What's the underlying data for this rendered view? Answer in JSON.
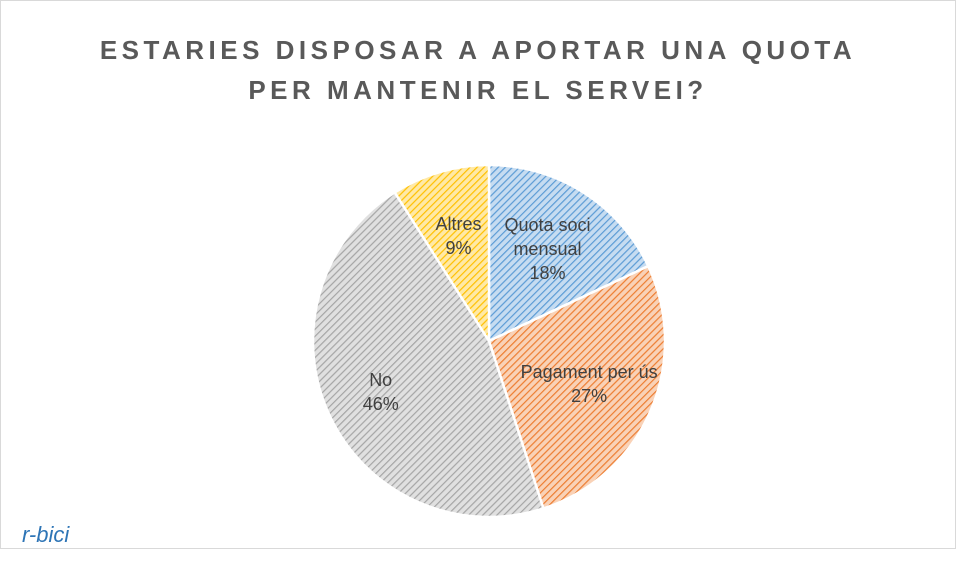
{
  "chart_data": {
    "type": "pie",
    "title": "ESTARIES DISPOSAR A APORTAR UNA QUOTA\nPER MANTENIR EL SERVEI?",
    "categories": [
      "Quota soci mensual",
      "Pagament per ús",
      "No",
      "Altres"
    ],
    "values": [
      18,
      27,
      46,
      9
    ],
    "value_labels": [
      "18%",
      "27%",
      "46%",
      "9%"
    ],
    "colors": [
      "#5b9bd5",
      "#ed7d31",
      "#a5a5a5",
      "#ffc000"
    ],
    "logo": "r-bici"
  }
}
